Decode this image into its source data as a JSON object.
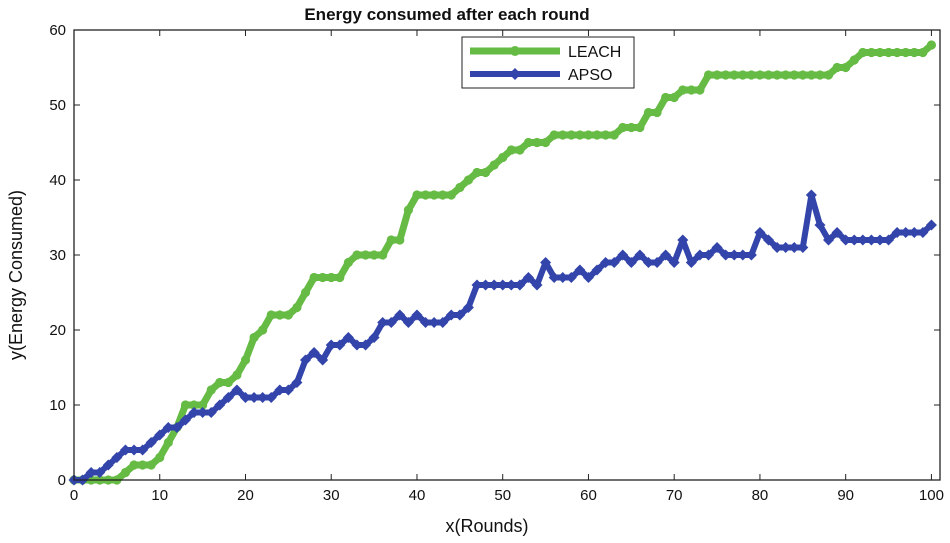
{
  "chart_data": {
    "type": "line",
    "title": "Energy consumed after each round",
    "xlabel": "x(Rounds)",
    "ylabel": "y(Energy Consumed)",
    "xlim": [
      0,
      101
    ],
    "ylim": [
      0,
      60
    ],
    "xticks": [
      0,
      10,
      20,
      30,
      40,
      50,
      60,
      70,
      80,
      90,
      100
    ],
    "yticks": [
      0,
      10,
      20,
      30,
      40,
      50,
      60
    ],
    "grid": false,
    "legend_position": "top-center",
    "series": [
      {
        "name": "LEACH",
        "color": "#66bb44",
        "marker": "circle",
        "x": [
          0,
          1,
          2,
          3,
          4,
          5,
          6,
          7,
          8,
          9,
          10,
          11,
          12,
          13,
          14,
          15,
          16,
          17,
          18,
          19,
          20,
          21,
          22,
          23,
          24,
          25,
          26,
          27,
          28,
          29,
          30,
          31,
          32,
          33,
          34,
          35,
          36,
          37,
          38,
          39,
          40,
          41,
          42,
          43,
          44,
          45,
          46,
          47,
          48,
          49,
          50,
          51,
          52,
          53,
          54,
          55,
          56,
          57,
          58,
          59,
          60,
          61,
          62,
          63,
          64,
          65,
          66,
          67,
          68,
          69,
          70,
          71,
          72,
          73,
          74,
          75,
          76,
          77,
          78,
          79,
          80,
          81,
          82,
          83,
          84,
          85,
          86,
          87,
          88,
          89,
          90,
          91,
          92,
          93,
          94,
          95,
          96,
          97,
          98,
          99,
          100
        ],
        "values": [
          0,
          0,
          0,
          0,
          0,
          0,
          1,
          2,
          2,
          2,
          3,
          5,
          7,
          10,
          10,
          10,
          12,
          13,
          13,
          14,
          16,
          19,
          20,
          22,
          22,
          22,
          23,
          25,
          27,
          27,
          27,
          27,
          29,
          30,
          30,
          30,
          30,
          32,
          32,
          36,
          38,
          38,
          38,
          38,
          38,
          39,
          40,
          41,
          41,
          42,
          43,
          44,
          44,
          45,
          45,
          45,
          46,
          46,
          46,
          46,
          46,
          46,
          46,
          46,
          47,
          47,
          47,
          49,
          49,
          51,
          51,
          52,
          52,
          52,
          54,
          54,
          54,
          54,
          54,
          54,
          54,
          54,
          54,
          54,
          54,
          54,
          54,
          54,
          54,
          55,
          55,
          56,
          57,
          57,
          57,
          57,
          57,
          57,
          57,
          57,
          58
        ]
      },
      {
        "name": "APSO",
        "color": "#3344aa",
        "marker": "diamond",
        "x": [
          0,
          1,
          2,
          3,
          4,
          5,
          6,
          7,
          8,
          9,
          10,
          11,
          12,
          13,
          14,
          15,
          16,
          17,
          18,
          19,
          20,
          21,
          22,
          23,
          24,
          25,
          26,
          27,
          28,
          29,
          30,
          31,
          32,
          33,
          34,
          35,
          36,
          37,
          38,
          39,
          40,
          41,
          42,
          43,
          44,
          45,
          46,
          47,
          48,
          49,
          50,
          51,
          52,
          53,
          54,
          55,
          56,
          57,
          58,
          59,
          60,
          61,
          62,
          63,
          64,
          65,
          66,
          67,
          68,
          69,
          70,
          71,
          72,
          73,
          74,
          75,
          76,
          77,
          78,
          79,
          80,
          81,
          82,
          83,
          84,
          85,
          86,
          87,
          88,
          89,
          90,
          91,
          92,
          93,
          94,
          95,
          96,
          97,
          98,
          99,
          100
        ],
        "values": [
          0,
          0,
          1,
          1,
          2,
          3,
          4,
          4,
          4,
          5,
          6,
          7,
          7,
          8,
          9,
          9,
          9,
          10,
          11,
          12,
          11,
          11,
          11,
          11,
          12,
          12,
          13,
          16,
          17,
          16,
          18,
          18,
          19,
          18,
          18,
          19,
          21,
          21,
          22,
          21,
          22,
          21,
          21,
          21,
          22,
          22,
          23,
          26,
          26,
          26,
          26,
          26,
          26,
          27,
          26,
          29,
          27,
          27,
          27,
          28,
          27,
          28,
          29,
          29,
          30,
          29,
          30,
          29,
          29,
          30,
          29,
          32,
          29,
          30,
          30,
          31,
          30,
          30,
          30,
          30,
          33,
          32,
          31,
          31,
          31,
          31,
          38,
          34,
          32,
          33,
          32,
          32,
          32,
          32,
          32,
          32,
          33,
          33,
          33,
          33,
          34
        ]
      }
    ]
  }
}
